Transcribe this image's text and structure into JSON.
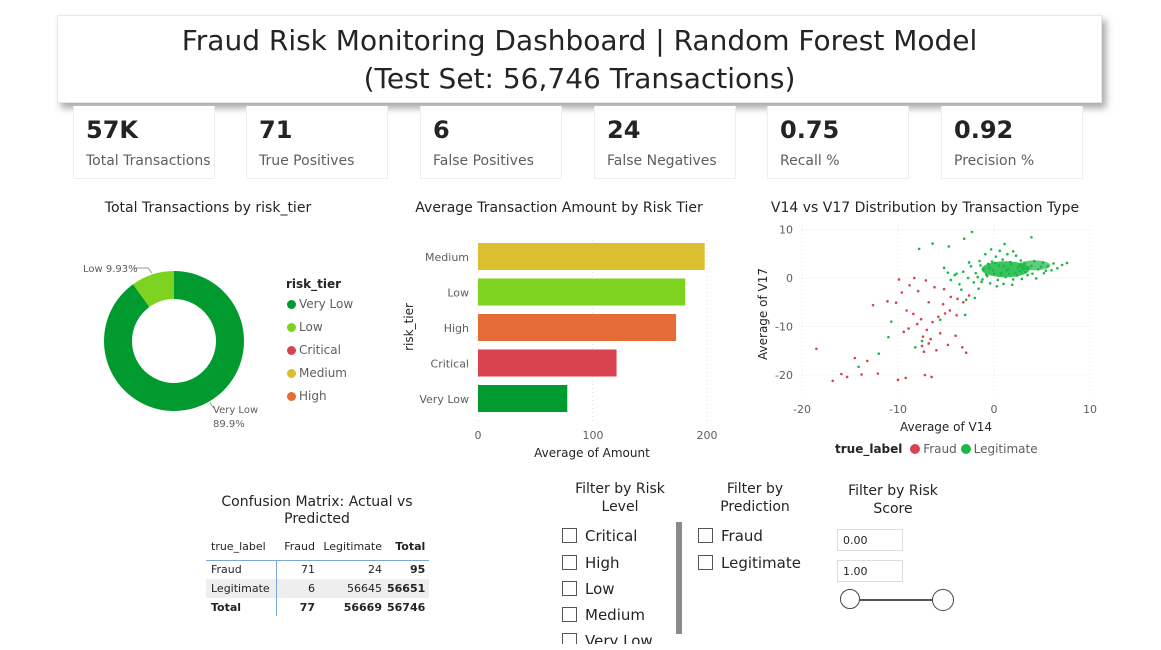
{
  "header": {
    "title_line1": "Fraud Risk Monitoring Dashboard | Random Forest Model",
    "title_line2": "(Test Set: 56,746 Transactions)"
  },
  "kpis": [
    {
      "value": "57K",
      "label": "Total Transactions"
    },
    {
      "value": "71",
      "label": "True Positives"
    },
    {
      "value": "6",
      "label": "False Positives"
    },
    {
      "value": "24",
      "label": "False Negatives"
    },
    {
      "value": "0.75",
      "label": "Recall %"
    },
    {
      "value": "0.92",
      "label": "Precision %"
    }
  ],
  "donut": {
    "title": "Total Transactions by risk_tier",
    "legend_title": "risk_tier",
    "slice_labels": {
      "low": "Low 9.93%",
      "very_low_name": "Very Low",
      "very_low_pct": "89.9%"
    },
    "legend": [
      {
        "name": "Very Low",
        "color": "#009a2f"
      },
      {
        "name": "Low",
        "color": "#7ed321"
      },
      {
        "name": "Critical",
        "color": "#d9434f"
      },
      {
        "name": "Medium",
        "color": "#dbbf2e"
      },
      {
        "name": "High",
        "color": "#e66c37"
      }
    ]
  },
  "bar_chart": {
    "title": "Average Transaction Amount by Risk Tier",
    "xlabel": "Average of Amount",
    "ylabel": "risk_tier",
    "x_ticks": [
      "0",
      "100",
      "200"
    ]
  },
  "scatter": {
    "title": "V14 vs V17 Distribution by Transaction Type",
    "xlabel": "Average of V14",
    "ylabel": "Average of V17",
    "x_ticks": [
      "-20",
      "-10",
      "0",
      "10"
    ],
    "y_ticks": [
      "10",
      "0",
      "-10",
      "-20"
    ],
    "legend_title": "true_label",
    "legend": [
      {
        "name": "Fraud",
        "color": "#d9434f"
      },
      {
        "name": "Legitimate",
        "color": "#19b843"
      }
    ]
  },
  "confusion_matrix": {
    "title_line1": "Confusion Matrix: Actual vs",
    "title_line2": "Predicted",
    "headers": [
      "true_label",
      "Fraud",
      "Legitimate",
      "Total"
    ],
    "rows": [
      [
        "Fraud",
        "71",
        "24",
        "95"
      ],
      [
        "Legitimate",
        "6",
        "56645",
        "56651"
      ],
      [
        "Total",
        "77",
        "56669",
        "56746"
      ]
    ]
  },
  "filter_risk": {
    "title_line1": "Filter by Risk",
    "title_line2": "Level",
    "options": [
      "Critical",
      "High",
      "Low",
      "Medium",
      "Very Low"
    ]
  },
  "filter_prediction": {
    "title_line1": "Filter by",
    "title_line2": "Prediction",
    "options": [
      "Fraud",
      "Legitimate"
    ]
  },
  "filter_score": {
    "title_line1": "Filter by Risk",
    "title_line2": "Score",
    "min_value": "0.00",
    "max_value": "1.00"
  },
  "chart_data": [
    {
      "type": "pie",
      "title": "Total Transactions by risk_tier",
      "categories": [
        "Very Low",
        "Low"
      ],
      "values": [
        89.9,
        9.93
      ],
      "unit": "%",
      "legend": "right"
    },
    {
      "type": "bar",
      "orientation": "horizontal",
      "title": "Average Transaction Amount by Risk Tier",
      "categories": [
        "Medium",
        "Low",
        "High",
        "Critical",
        "Very Low"
      ],
      "values": [
        198,
        181,
        173,
        121,
        78
      ],
      "colors": [
        "#dbbf2e",
        "#7ed321",
        "#e66c37",
        "#d9434f",
        "#009a2f"
      ],
      "xlabel": "Average of Amount",
      "ylabel": "risk_tier",
      "xlim": [
        0,
        220
      ]
    },
    {
      "type": "scatter",
      "title": "V14 vs V17 Distribution by Transaction Type",
      "xlabel": "Average of V14",
      "ylabel": "Average of V17",
      "xlim": [
        -20,
        10
      ],
      "ylim": [
        -22,
        10
      ],
      "legend": "bottom",
      "series": [
        {
          "name": "Fraud",
          "color": "#d9434f",
          "points": [
            [
              -18.5,
              -14.6
            ],
            [
              -16.8,
              -21.2
            ],
            [
              -15.9,
              -19.8
            ],
            [
              -15.3,
              -20.4
            ],
            [
              -13.8,
              -19.9
            ],
            [
              -12.1,
              -19.7
            ],
            [
              -10.0,
              -21.0
            ],
            [
              -9.2,
              -20.6
            ],
            [
              -7.2,
              -20.0
            ],
            [
              -6.5,
              -20.4
            ],
            [
              -13.2,
              -17.1
            ],
            [
              -14.5,
              -16.5
            ],
            [
              -12.6,
              -5.6
            ],
            [
              -11.1,
              -4.8
            ],
            [
              -10.2,
              -5.1
            ],
            [
              -9.6,
              -3.0
            ],
            [
              -8.8,
              -1.5
            ],
            [
              -9.9,
              -0.3
            ],
            [
              -8.3,
              0.0
            ],
            [
              -7.1,
              -0.5
            ],
            [
              -6.2,
              -1.9
            ],
            [
              -5.2,
              -2.3
            ],
            [
              -4.5,
              -3.9
            ],
            [
              -9.4,
              -11.1
            ],
            [
              -8.9,
              -10.4
            ],
            [
              -8.0,
              -9.5
            ],
            [
              -7.6,
              -8.5
            ],
            [
              -7.0,
              -10.7
            ],
            [
              -6.4,
              -9.1
            ],
            [
              -5.8,
              -8.0
            ],
            [
              -5.1,
              -7.3
            ],
            [
              -4.6,
              -6.7
            ],
            [
              -3.9,
              -7.7
            ],
            [
              -7.4,
              -12.1
            ],
            [
              -6.8,
              -13.5
            ],
            [
              -5.6,
              -11.4
            ],
            [
              -4.8,
              -13.8
            ],
            [
              -4.0,
              -11.9
            ],
            [
              -7.3,
              -15.2
            ],
            [
              -6.0,
              -14.9
            ],
            [
              -3.3,
              -14.3
            ],
            [
              -2.9,
              -15.4
            ],
            [
              -9.1,
              -6.7
            ],
            [
              -8.4,
              -7.4
            ],
            [
              -6.8,
              -5.0
            ],
            [
              -5.3,
              -5.4
            ],
            [
              -3.8,
              -4.3
            ],
            [
              -3.2,
              -5.0
            ],
            [
              -2.6,
              -3.6
            ],
            [
              -7.9,
              -2.7
            ],
            [
              -7.5,
              -14.0
            ],
            [
              -6.6,
              -12.6
            ]
          ]
        },
        {
          "name": "Legitimate",
          "color": "#19b843",
          "points": [
            [
              -14.1,
              -18.3
            ],
            [
              -12.0,
              -15.6
            ],
            [
              -11.0,
              -12.2
            ],
            [
              -10.7,
              -9.0
            ],
            [
              -8.2,
              -14.3
            ],
            [
              -7.5,
              -13.0
            ],
            [
              -5.6,
              -8.6
            ],
            [
              -7.8,
              6.0
            ],
            [
              -6.4,
              7.1
            ],
            [
              -4.7,
              6.5
            ],
            [
              -3.1,
              8.1
            ],
            [
              -2.3,
              9.5
            ],
            [
              3.9,
              8.4
            ],
            [
              1.1,
              7.0
            ],
            [
              -5.2,
              2.1
            ],
            [
              -4.1,
              0.6
            ],
            [
              -3.6,
              -1.3
            ],
            [
              -3.4,
              -2.4
            ],
            [
              -2.9,
              -4.5
            ],
            [
              -3.0,
              -7.6
            ],
            [
              -2.0,
              -4.1
            ],
            [
              -1.6,
              -2.2
            ],
            [
              -1.3,
              -0.8
            ],
            [
              -0.8,
              0.7
            ],
            [
              -0.5,
              2.1
            ],
            [
              -0.2,
              3.4
            ],
            [
              0.2,
              4.4
            ],
            [
              0.5,
              2.5
            ],
            [
              0.9,
              3.8
            ],
            [
              1.3,
              1.6
            ],
            [
              1.8,
              2.8
            ],
            [
              2.3,
              4.6
            ],
            [
              2.7,
              1.5
            ],
            [
              3.2,
              3.0
            ],
            [
              3.6,
              2.1
            ],
            [
              4.2,
              3.5
            ],
            [
              4.6,
              1.8
            ],
            [
              5.1,
              3.2
            ],
            [
              5.6,
              2.4
            ],
            [
              6.2,
              3.0
            ],
            [
              7.1,
              2.7
            ],
            [
              7.6,
              3.1
            ],
            [
              -1.1,
              1.7
            ],
            [
              -0.7,
              0.4
            ],
            [
              0.0,
              0.9
            ],
            [
              0.4,
              -0.4
            ],
            [
              0.8,
              1.1
            ],
            [
              1.2,
              0.2
            ],
            [
              1.6,
              0.9
            ],
            [
              2.0,
              -0.3
            ],
            [
              2.4,
              0.5
            ],
            [
              -1.9,
              1.0
            ],
            [
              -2.4,
              2.4
            ],
            [
              -1.5,
              3.5
            ],
            [
              -0.9,
              4.9
            ],
            [
              -0.3,
              5.9
            ],
            [
              0.6,
              5.6
            ],
            [
              1.4,
              4.9
            ],
            [
              2.0,
              5.5
            ],
            [
              2.8,
              3.6
            ],
            [
              -2.7,
              0.0
            ],
            [
              -3.2,
              1.3
            ],
            [
              -2.1,
              -0.9
            ],
            [
              -1.7,
              0.2
            ],
            [
              -0.4,
              -1.1
            ],
            [
              0.3,
              -1.7
            ],
            [
              1.0,
              -1.2
            ],
            [
              1.9,
              -1.4
            ],
            [
              2.9,
              -0.2
            ],
            [
              3.5,
              0.6
            ],
            [
              4.0,
              0.9
            ],
            [
              4.4,
              -0.1
            ],
            [
              5.2,
              1.0
            ],
            [
              6.0,
              1.6
            ],
            [
              6.6,
              2.0
            ],
            [
              -4.5,
              -0.4
            ],
            [
              -3.9,
              0.9
            ],
            [
              -4.8,
              1.1
            ],
            [
              -2.6,
              3.2
            ],
            [
              -1.4,
              2.6
            ],
            [
              -0.6,
              2.9
            ],
            [
              0.1,
              3.1
            ],
            [
              1.0,
              2.4
            ],
            [
              1.7,
              3.3
            ],
            [
              2.5,
              2.2
            ],
            [
              3.0,
              1.8
            ],
            [
              3.9,
              2.5
            ],
            [
              4.9,
              2.3
            ],
            [
              5.4,
              1.5
            ],
            [
              -0.1,
              1.6
            ],
            [
              0.7,
              0.7
            ],
            [
              1.5,
              1.8
            ],
            [
              2.2,
              1.1
            ],
            [
              3.3,
              1.2
            ],
            [
              -1.2,
              -0.3
            ]
          ]
        }
      ]
    }
  ]
}
